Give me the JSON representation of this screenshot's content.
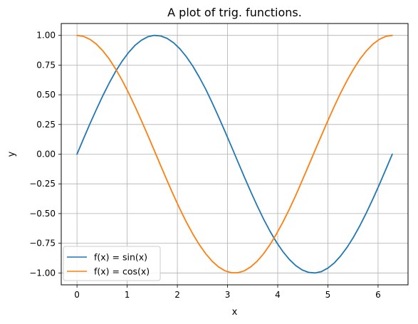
{
  "chart_data": {
    "type": "line",
    "title": "A plot of trig. functions.",
    "xlabel": "x",
    "ylabel": "y",
    "xlim": [
      -0.314,
      6.597
    ],
    "ylim": [
      -1.1,
      1.1
    ],
    "xticks": [
      0,
      1,
      2,
      3,
      4,
      5,
      6
    ],
    "xtick_labels": [
      "0",
      "1",
      "2",
      "3",
      "4",
      "5",
      "6"
    ],
    "yticks": [
      -1.0,
      -0.75,
      -0.5,
      -0.25,
      0.0,
      0.25,
      0.5,
      0.75,
      1.0
    ],
    "ytick_labels": [
      "−1.00",
      "−0.75",
      "−0.50",
      "−0.25",
      "0.00",
      "0.25",
      "0.50",
      "0.75",
      "1.00"
    ],
    "grid": true,
    "legend_position": "lower-left",
    "x": [
      0.0,
      0.128,
      0.256,
      0.385,
      0.513,
      0.641,
      0.769,
      0.898,
      1.026,
      1.154,
      1.282,
      1.411,
      1.539,
      1.667,
      1.795,
      1.924,
      2.052,
      2.18,
      2.308,
      2.436,
      2.565,
      2.693,
      2.821,
      2.949,
      3.078,
      3.206,
      3.334,
      3.462,
      3.59,
      3.719,
      3.847,
      3.975,
      4.103,
      4.232,
      4.36,
      4.488,
      4.616,
      4.744,
      4.873,
      5.001,
      5.129,
      5.257,
      5.386,
      5.514,
      5.642,
      5.77,
      5.899,
      6.027,
      6.155,
      6.283
    ],
    "series": [
      {
        "name": "f(x) = sin(x)",
        "color": "#1f77b4",
        "values": [
          0.0,
          0.128,
          0.254,
          0.375,
          0.491,
          0.598,
          0.696,
          0.782,
          0.855,
          0.915,
          0.959,
          0.988,
          1.0,
          0.995,
          0.975,
          0.938,
          0.886,
          0.82,
          0.741,
          0.649,
          0.547,
          0.434,
          0.315,
          0.191,
          0.064,
          -0.064,
          -0.191,
          -0.315,
          -0.434,
          -0.547,
          -0.649,
          -0.741,
          -0.82,
          -0.886,
          -0.938,
          -0.975,
          -0.995,
          -1.0,
          -0.988,
          -0.959,
          -0.915,
          -0.855,
          -0.782,
          -0.696,
          -0.598,
          -0.491,
          -0.375,
          -0.254,
          -0.128,
          0.0
        ]
      },
      {
        "name": "f(x) = cos(x)",
        "color": "#ff7f0e",
        "values": [
          1.0,
          0.992,
          0.967,
          0.927,
          0.871,
          0.802,
          0.718,
          0.623,
          0.518,
          0.404,
          0.284,
          0.159,
          0.032,
          -0.096,
          -0.222,
          -0.346,
          -0.463,
          -0.572,
          -0.672,
          -0.761,
          -0.838,
          -0.901,
          -0.949,
          -0.982,
          -0.998,
          -0.998,
          -0.982,
          -0.949,
          -0.901,
          -0.838,
          -0.761,
          -0.672,
          -0.572,
          -0.463,
          -0.346,
          -0.222,
          -0.096,
          0.032,
          0.159,
          0.284,
          0.404,
          0.518,
          0.623,
          0.718,
          0.802,
          0.871,
          0.927,
          0.967,
          0.992,
          1.0
        ]
      }
    ]
  }
}
